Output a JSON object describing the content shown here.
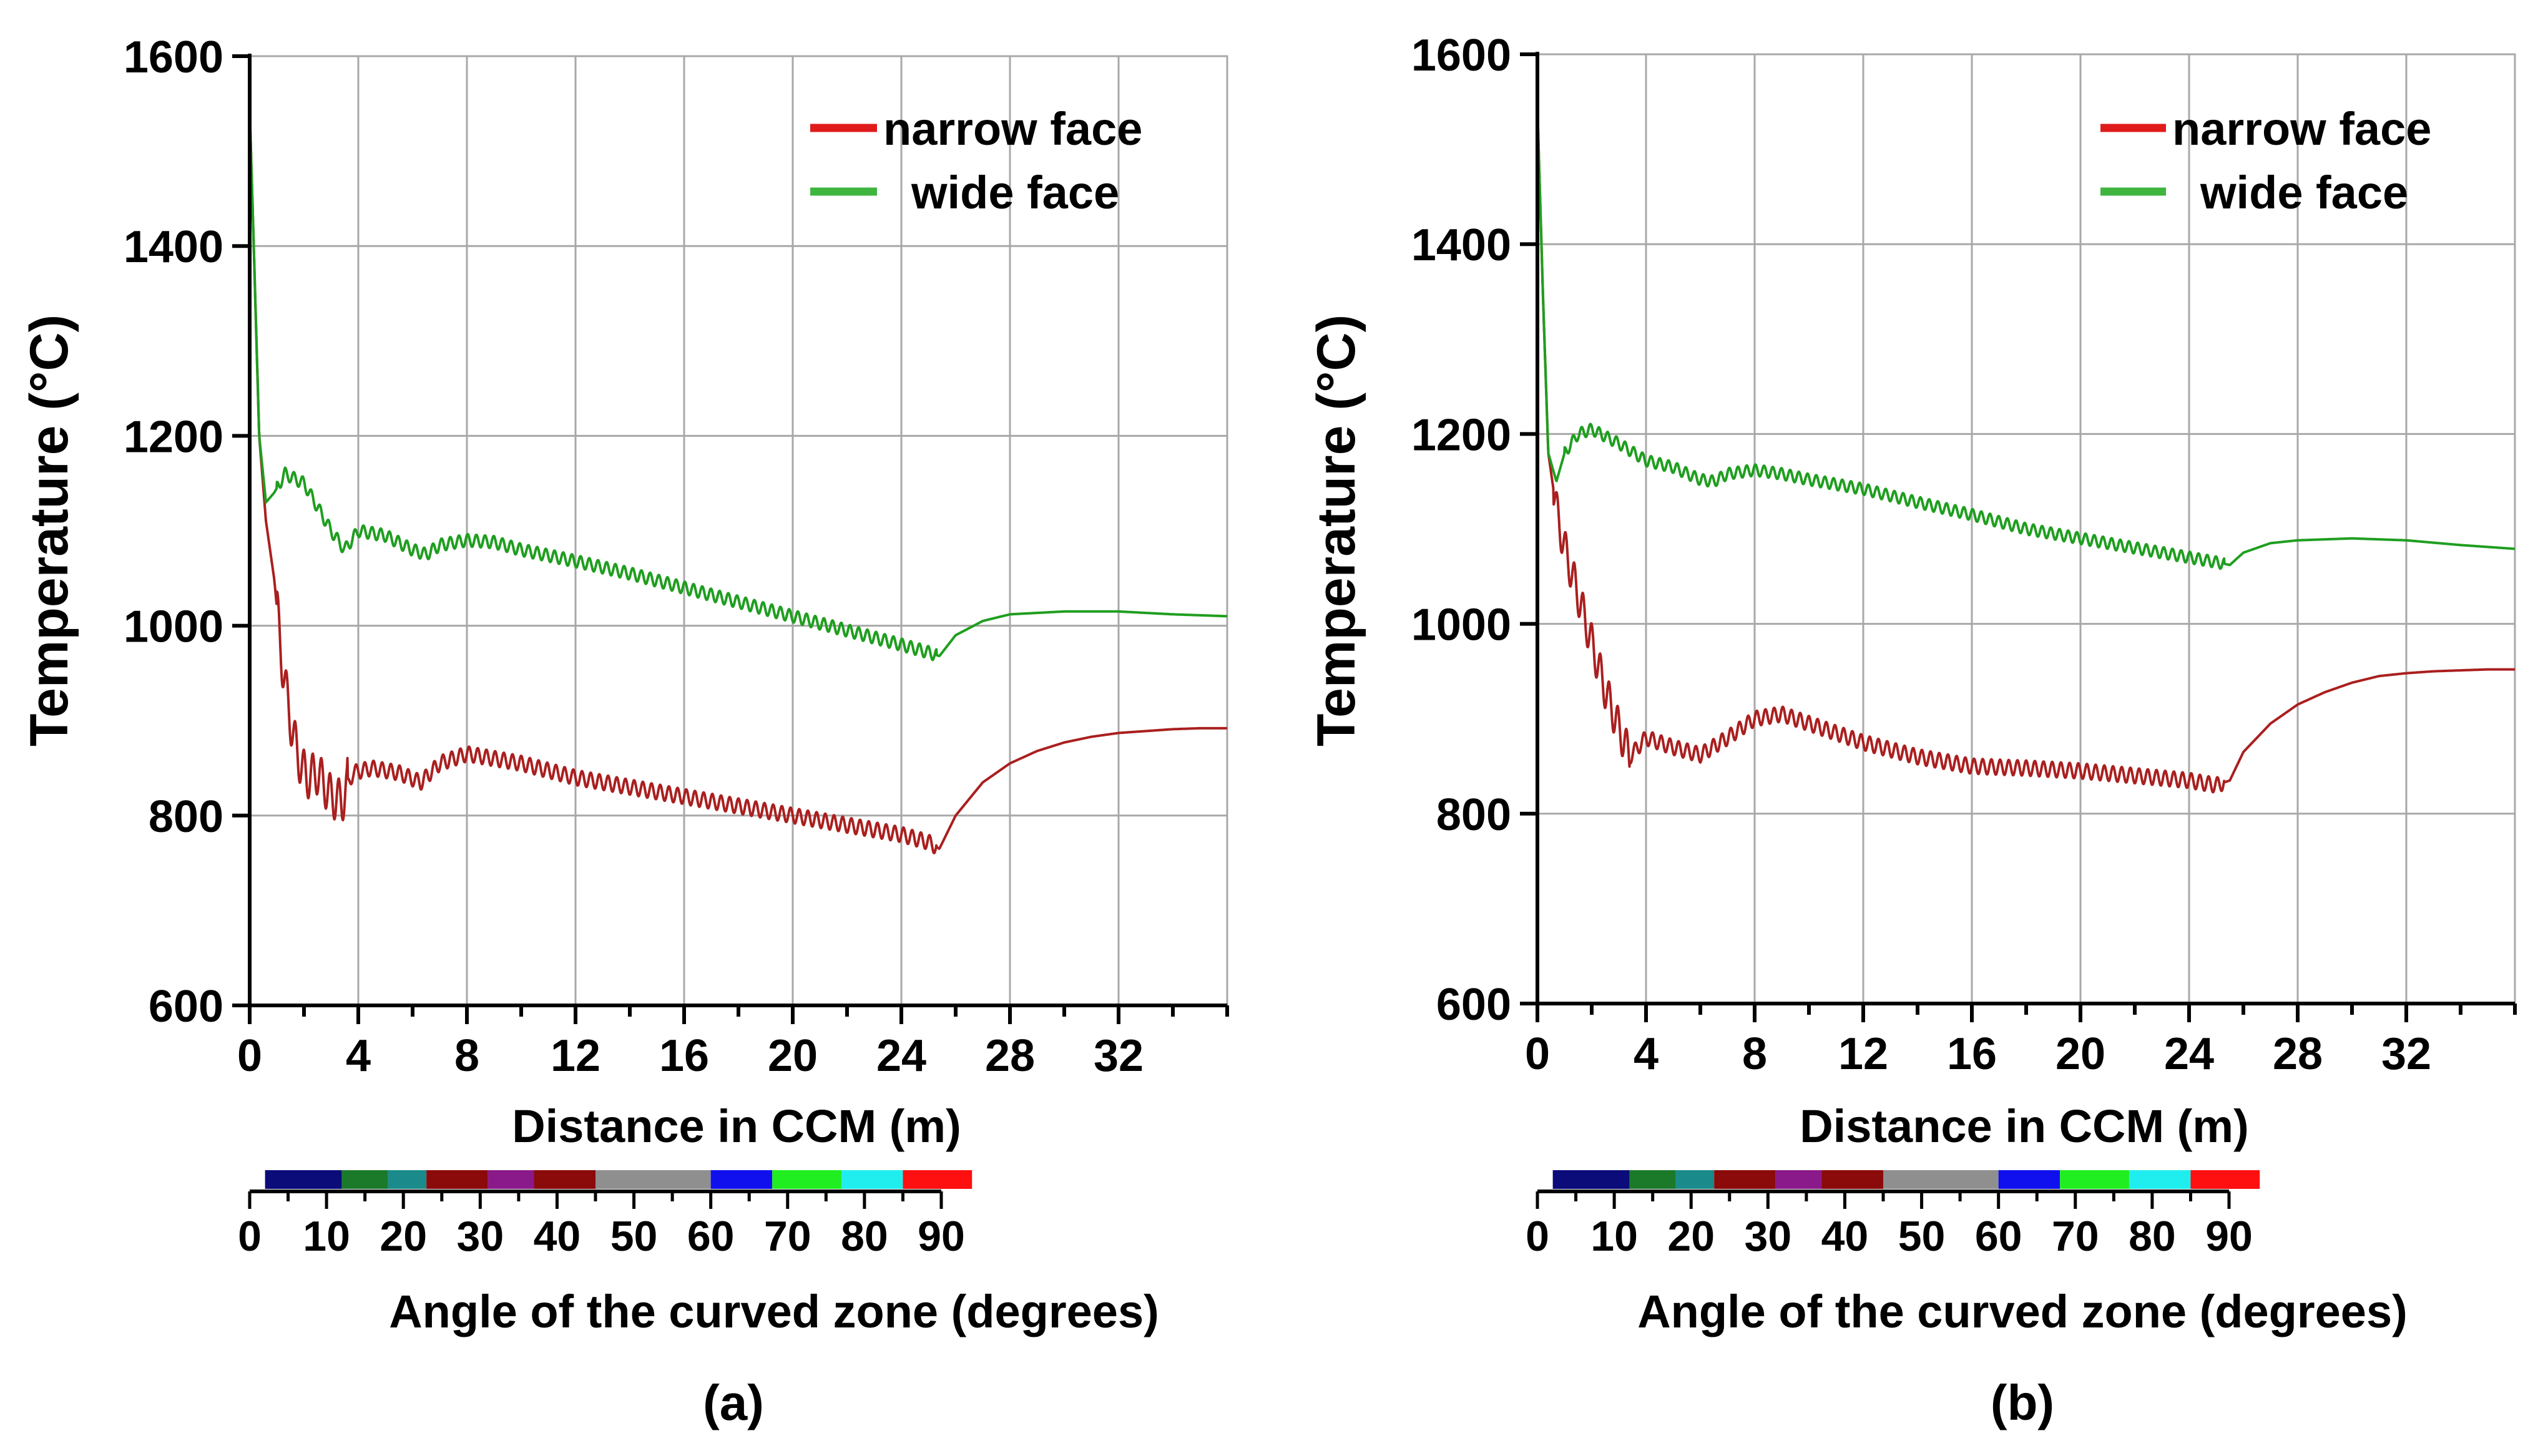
{
  "chart_data": [
    {
      "panel_label": "(a)",
      "type": "line",
      "xlabel": "Distance in CCM (m)",
      "ylabel": "Temperature (°C)",
      "xlim": [
        0,
        36
      ],
      "ylim": [
        600,
        1600
      ],
      "xticks": [
        0,
        4,
        8,
        12,
        16,
        20,
        24,
        28,
        32
      ],
      "yticks": [
        600,
        800,
        1000,
        1200,
        1400,
        1600
      ],
      "grid": true,
      "legend_position": "top-right",
      "series": [
        {
          "name": "narrow face",
          "color": "#aa1f1f",
          "legend_color": "#e01b1b",
          "x": [
            0,
            0.15,
            0.35,
            0.6,
            0.9,
            1.2,
            1.5,
            1.8,
            2.1,
            2.5,
            3.0,
            3.4,
            3.8,
            4.5,
            5.5,
            6.3,
            7.0,
            8.0,
            9.0,
            10.0,
            12.0,
            14.0,
            16.0,
            18.0,
            20.0,
            22.0,
            24.0,
            25.0,
            25.4,
            26.0,
            27.0,
            28.0,
            29.0,
            30.0,
            31.0,
            32.0,
            33.0,
            34.0,
            35.0,
            36.0
          ],
          "y": [
            1545,
            1400,
            1200,
            1110,
            1050,
            960,
            900,
            860,
            840,
            845,
            820,
            815,
            845,
            850,
            845,
            835,
            855,
            865,
            860,
            855,
            840,
            830,
            820,
            810,
            800,
            790,
            780,
            772,
            765,
            800,
            835,
            855,
            868,
            877,
            883,
            887,
            889,
            891,
            892,
            892
          ],
          "noise": [
            [
              1.0,
              3.6,
              45
            ],
            [
              3.6,
              25.3,
              16
            ]
          ]
        },
        {
          "name": "wide face",
          "color": "#1f9e1f",
          "legend_color": "#3fb53f",
          "x": [
            0,
            0.15,
            0.35,
            0.6,
            0.9,
            1.3,
            2.0,
            3.0,
            3.5,
            4.0,
            5.0,
            6.0,
            6.5,
            7.0,
            8.0,
            9.0,
            10.0,
            12.0,
            14.0,
            16.0,
            18.0,
            20.0,
            22.0,
            24.0,
            25.0,
            25.4,
            26.0,
            27.0,
            28.0,
            30.0,
            32.0,
            34.0,
            36.0
          ],
          "y": [
            1545,
            1400,
            1200,
            1130,
            1140,
            1160,
            1150,
            1100,
            1080,
            1100,
            1095,
            1080,
            1075,
            1085,
            1090,
            1088,
            1080,
            1068,
            1055,
            1040,
            1025,
            1010,
            995,
            980,
            972,
            968,
            990,
            1005,
            1012,
            1015,
            1015,
            1012,
            1010
          ],
          "noise": [
            [
              1.0,
              25.3,
              13
            ]
          ]
        }
      ]
    },
    {
      "panel_label": "(b)",
      "type": "line",
      "xlabel": "Distance in CCM (m)",
      "ylabel": "Temperature (°C)",
      "xlim": [
        0,
        36
      ],
      "ylim": [
        600,
        1600
      ],
      "xticks": [
        0,
        4,
        8,
        12,
        16,
        20,
        24,
        28,
        32
      ],
      "yticks": [
        600,
        800,
        1000,
        1200,
        1400,
        1600
      ],
      "grid": true,
      "legend_position": "top-right",
      "series": [
        {
          "name": "narrow face",
          "color": "#aa1f1f",
          "legend_color": "#e01b1b",
          "x": [
            0,
            0.2,
            0.4,
            0.7,
            1.0,
            1.5,
            2.0,
            2.5,
            3.0,
            3.4,
            4.0,
            5.0,
            6.0,
            7.0,
            8.0,
            9.0,
            10.0,
            11.0,
            12.0,
            14.0,
            16.0,
            18.0,
            20.0,
            22.0,
            24.0,
            25.0,
            25.5,
            26.0,
            27.0,
            28.0,
            29.0,
            30.0,
            31.0,
            32.0,
            33.0,
            34.0,
            35.0,
            36.0
          ],
          "y": [
            1545,
            1350,
            1180,
            1120,
            1080,
            1030,
            980,
            930,
            890,
            860,
            880,
            870,
            862,
            880,
            900,
            905,
            895,
            885,
            875,
            860,
            850,
            848,
            845,
            840,
            835,
            830,
            835,
            865,
            895,
            915,
            928,
            938,
            945,
            948,
            950,
            951,
            952,
            952
          ],
          "noise": [
            [
              0.6,
              3.4,
              40
            ],
            [
              3.4,
              25.3,
              16
            ]
          ]
        },
        {
          "name": "wide face",
          "color": "#1f9e1f",
          "legend_color": "#3fb53f",
          "x": [
            0,
            0.2,
            0.4,
            0.7,
            1.0,
            1.5,
            2.0,
            3.0,
            4.0,
            5.0,
            6.0,
            6.5,
            7.0,
            8.0,
            9.0,
            10.0,
            12.0,
            14.0,
            16.0,
            18.0,
            20.0,
            22.0,
            24.0,
            25.0,
            25.5,
            26.0,
            27.0,
            28.0,
            30.0,
            32.0,
            34.0,
            36.0
          ],
          "y": [
            1545,
            1350,
            1180,
            1150,
            1180,
            1200,
            1205,
            1190,
            1172,
            1165,
            1152,
            1150,
            1158,
            1162,
            1158,
            1152,
            1142,
            1128,
            1115,
            1100,
            1090,
            1080,
            1070,
            1065,
            1062,
            1075,
            1085,
            1088,
            1090,
            1088,
            1083,
            1079
          ],
          "noise": [
            [
              1.0,
              25.3,
              12
            ]
          ]
        }
      ]
    }
  ],
  "angle_bar": {
    "ticks": [
      "0",
      "10",
      "20",
      "30",
      "40",
      "50",
      "60",
      "70",
      "80",
      "90"
    ],
    "label": "Angle of the curved zone (degrees)",
    "segments": [
      {
        "from": 2,
        "to": 12,
        "color": "#0b0b7a"
      },
      {
        "from": 12,
        "to": 18,
        "color": "#1a7a2a"
      },
      {
        "from": 18,
        "to": 23,
        "color": "#1a8a8a"
      },
      {
        "from": 23,
        "to": 31,
        "color": "#8b0a0a"
      },
      {
        "from": 31,
        "to": 37,
        "color": "#8a1a8a"
      },
      {
        "from": 37,
        "to": 45,
        "color": "#8b0a0a"
      },
      {
        "from": 45,
        "to": 60,
        "color": "#8f8f8f"
      },
      {
        "from": 60,
        "to": 68,
        "color": "#1010ee"
      },
      {
        "from": 68,
        "to": 77,
        "color": "#20ee20"
      },
      {
        "from": 77,
        "to": 85,
        "color": "#20eeee"
      },
      {
        "from": 85,
        "to": 94,
        "color": "#ff1010"
      }
    ]
  },
  "colors": {
    "grid": "#a8a8a8",
    "axis": "#000000"
  }
}
